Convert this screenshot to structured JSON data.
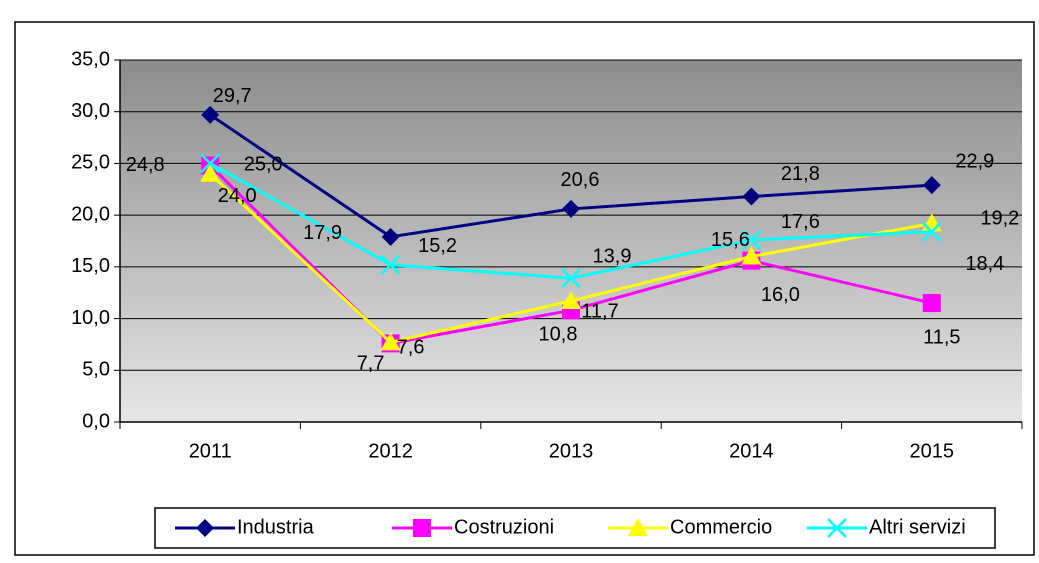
{
  "chart_data": {
    "type": "line",
    "categories": [
      "2011",
      "2012",
      "2013",
      "2014",
      "2015"
    ],
    "series": [
      {
        "name": "Industria",
        "color": "#000080",
        "marker": "diamond",
        "values": [
          29.7,
          17.9,
          20.6,
          21.8,
          22.9
        ],
        "value_labels": [
          "29,7",
          "17,9",
          "20,6",
          "21,8",
          "22,9"
        ]
      },
      {
        "name": "Costruzioni",
        "color": "#ff00ff",
        "marker": "square",
        "values": [
          24.8,
          7.6,
          10.8,
          15.6,
          11.5
        ],
        "value_labels": [
          "24,8",
          "7,6",
          "10,8",
          "15,6",
          "11,5"
        ]
      },
      {
        "name": "Commercio",
        "color": "#ffff00",
        "marker": "triangle",
        "values": [
          24.0,
          7.7,
          11.7,
          16.0,
          19.2
        ],
        "value_labels": [
          "24,0",
          "7,7",
          "11,7",
          "16,0",
          "19,2"
        ]
      },
      {
        "name": "Altri servizi",
        "color": "#00ffff",
        "marker": "x",
        "values": [
          25.0,
          15.2,
          13.9,
          17.6,
          18.4
        ],
        "value_labels": [
          "25,0",
          "15,2",
          "13,9",
          "17,6",
          "18,4"
        ]
      }
    ],
    "ylim": [
      0,
      35
    ],
    "yticks": [
      {
        "value": 0,
        "label": "0,0"
      },
      {
        "value": 5,
        "label": "5,0"
      },
      {
        "value": 10,
        "label": "10,0"
      },
      {
        "value": 15,
        "label": "15,0"
      },
      {
        "value": 20,
        "label": "20,0"
      },
      {
        "value": 25,
        "label": "25,0"
      },
      {
        "value": 30,
        "label": "30,0"
      },
      {
        "value": 35,
        "label": "35,0"
      }
    ],
    "grid": true,
    "legend": "bottom"
  }
}
